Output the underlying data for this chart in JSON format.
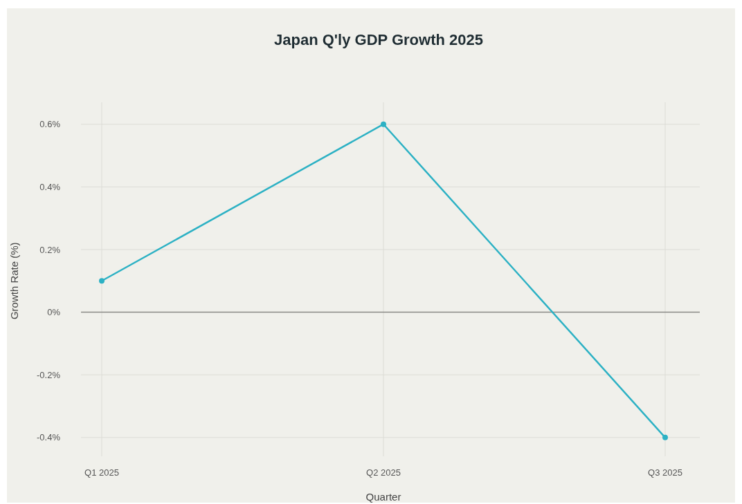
{
  "chart_data": {
    "type": "line",
    "title": "Japan Q'ly GDP Growth 2025",
    "xlabel": "Quarter",
    "ylabel": "Growth Rate (%)",
    "categories": [
      "Q1 2025",
      "Q2 2025",
      "Q3 2025"
    ],
    "series": [
      {
        "color": "#2cb1c4",
        "values": [
          0.1,
          0.6,
          -0.4
        ]
      }
    ],
    "ylim": [
      -0.46,
      0.67
    ],
    "yticks": [
      {
        "value": -0.4,
        "label": "-0.4%"
      },
      {
        "value": -0.2,
        "label": "-0.2%"
      },
      {
        "value": 0,
        "label": "0%"
      },
      {
        "value": 0.2,
        "label": "0.2%"
      },
      {
        "value": 0.4,
        "label": "0.4%"
      },
      {
        "value": 0.6,
        "label": "0.6%"
      }
    ],
    "ref_lines": [
      {
        "axis": "y",
        "value": 0,
        "color": "#8a8a86"
      }
    ],
    "grid": true,
    "marker": "circle",
    "line_style": "solid"
  }
}
